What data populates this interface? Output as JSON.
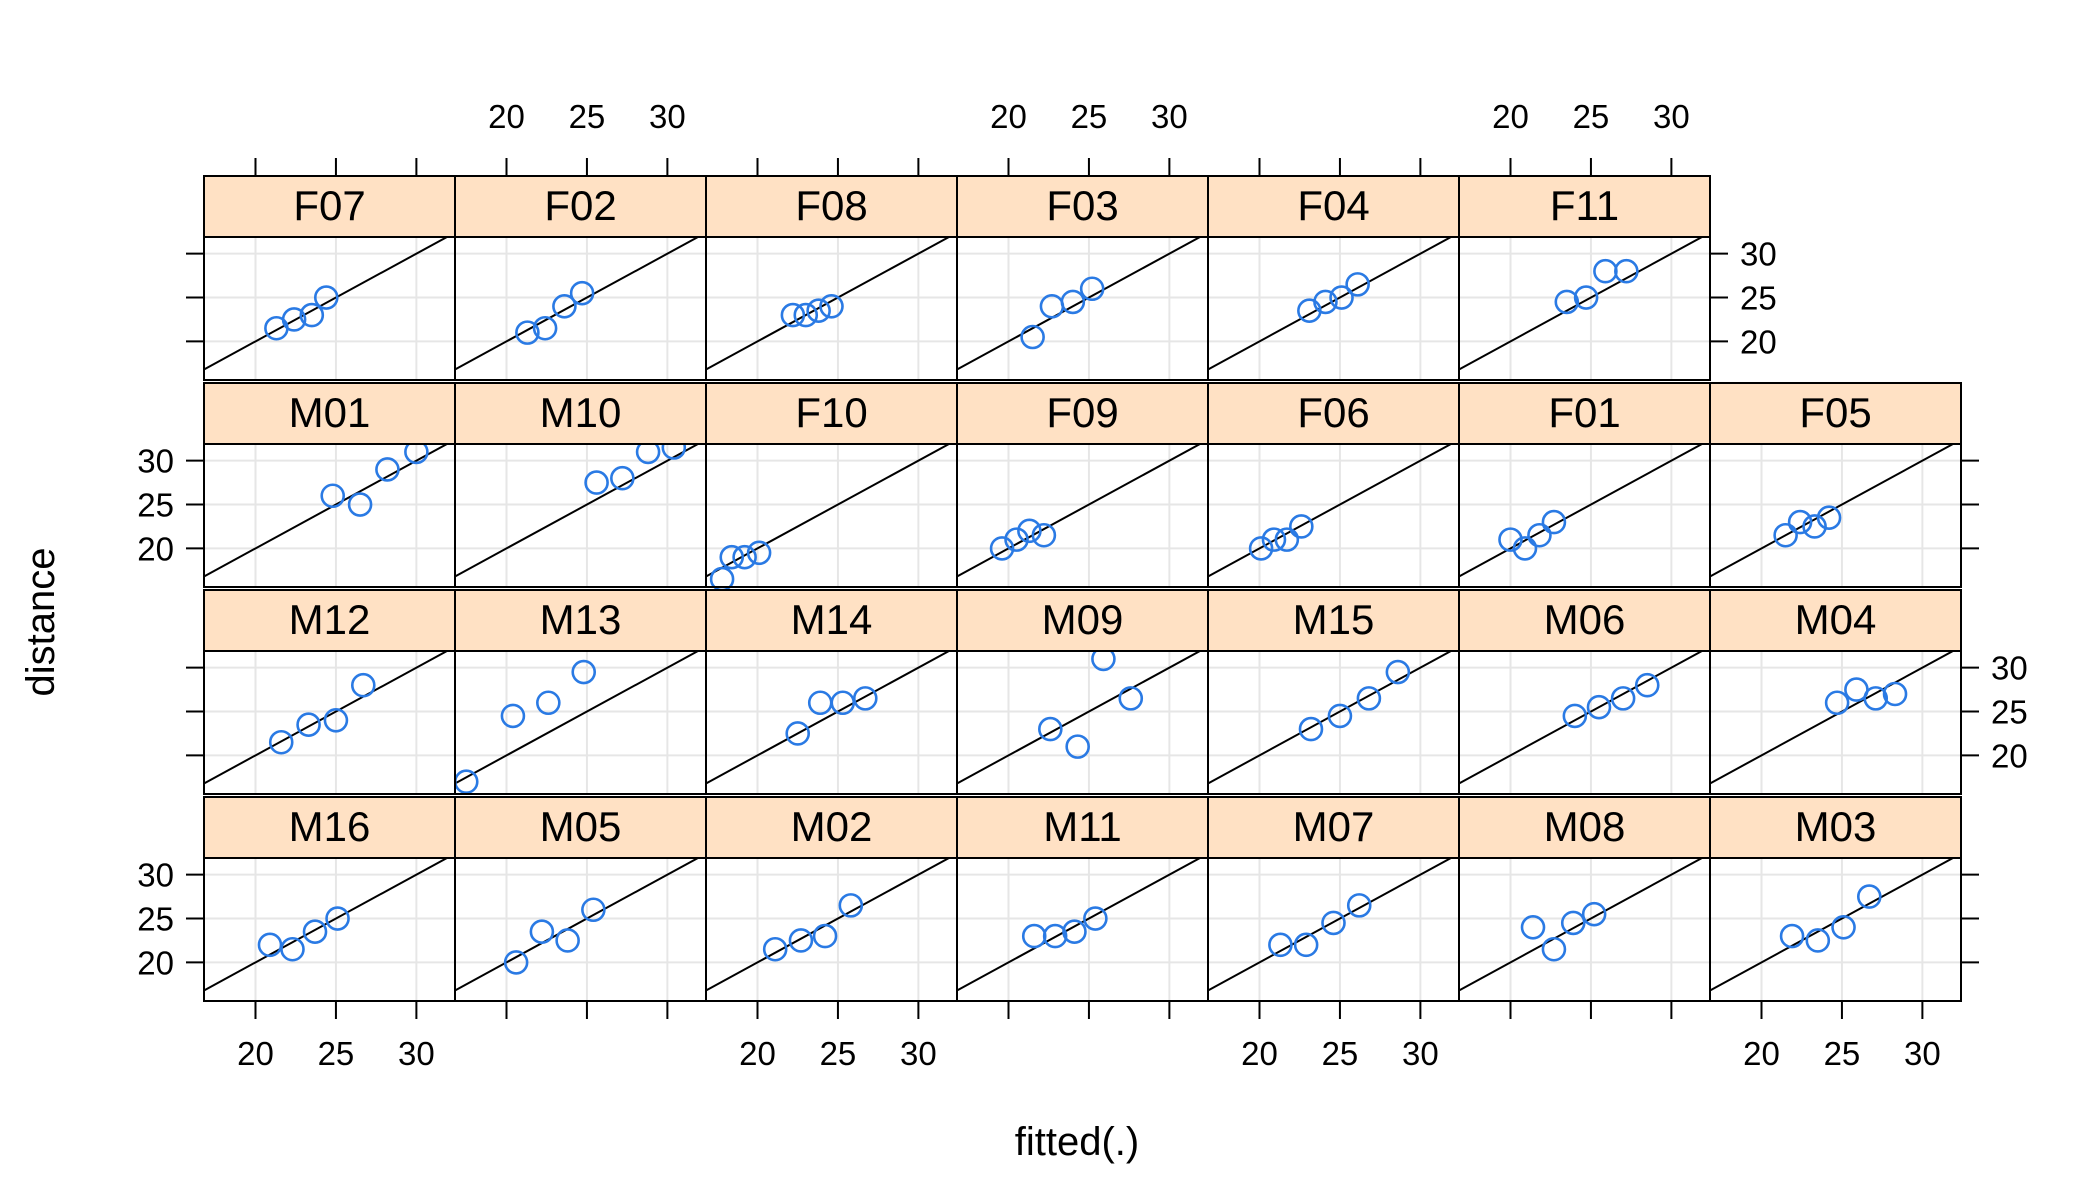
{
  "chart_data": {
    "type": "scatter",
    "xlabel": "fitted(.)",
    "ylabel": "distance",
    "xlim": [
      16.8,
      32.4
    ],
    "ylim": [
      15.6,
      31.9
    ],
    "x_ticks": [
      20,
      25,
      30
    ],
    "y_ticks": [
      20,
      25,
      30
    ],
    "tick_labels": [
      "20",
      "25",
      "30"
    ],
    "grid": true,
    "reference_line": "y = x",
    "colors": {
      "points": "#2a7ae4",
      "strip": "#ffe1c4",
      "grid": "#e6e6e6",
      "frame": "#000000"
    },
    "panels": [
      {
        "label": "F07",
        "points": [
          [
            21.3,
            21.5
          ],
          [
            22.4,
            22.5
          ],
          [
            23.5,
            23.0
          ],
          [
            24.4,
            25.0
          ]
        ]
      },
      {
        "label": "F02",
        "points": [
          [
            21.3,
            21.0
          ],
          [
            22.4,
            21.5
          ],
          [
            23.6,
            24.0
          ],
          [
            24.7,
            25.5
          ]
        ]
      },
      {
        "label": "F08",
        "points": [
          [
            22.2,
            23.0
          ],
          [
            23.0,
            23.0
          ],
          [
            23.8,
            23.5
          ],
          [
            24.6,
            24.0
          ]
        ]
      },
      {
        "label": "F03",
        "points": [
          [
            21.5,
            20.5
          ],
          [
            22.7,
            24.0
          ],
          [
            24.0,
            24.5
          ],
          [
            25.2,
            26.0
          ]
        ]
      },
      {
        "label": "F04",
        "points": [
          [
            23.1,
            23.5
          ],
          [
            24.1,
            24.5
          ],
          [
            25.1,
            25.0
          ],
          [
            26.1,
            26.5
          ]
        ]
      },
      {
        "label": "F11",
        "points": [
          [
            23.5,
            24.5
          ],
          [
            24.7,
            25.0
          ],
          [
            25.9,
            28.0
          ],
          [
            27.2,
            28.0
          ]
        ]
      },
      {
        "label": "M01",
        "points": [
          [
            24.8,
            26.0
          ],
          [
            26.5,
            25.0
          ],
          [
            28.2,
            29.0
          ],
          [
            30.0,
            31.0
          ]
        ]
      },
      {
        "label": "M10",
        "points": [
          [
            25.6,
            27.5
          ],
          [
            27.2,
            28.0
          ],
          [
            28.8,
            31.0
          ],
          [
            30.4,
            31.5
          ]
        ]
      },
      {
        "label": "F10",
        "points": [
          [
            17.8,
            16.5
          ],
          [
            18.4,
            19.0
          ],
          [
            19.2,
            19.0
          ],
          [
            20.1,
            19.5
          ]
        ]
      },
      {
        "label": "F09",
        "points": [
          [
            19.6,
            20.0
          ],
          [
            20.5,
            21.0
          ],
          [
            21.3,
            22.0
          ],
          [
            22.2,
            21.5
          ]
        ]
      },
      {
        "label": "F06",
        "points": [
          [
            20.1,
            20.0
          ],
          [
            20.9,
            21.0
          ],
          [
            21.7,
            21.0
          ],
          [
            22.6,
            22.5
          ]
        ]
      },
      {
        "label": "F01",
        "points": [
          [
            20.0,
            21.0
          ],
          [
            20.9,
            20.0
          ],
          [
            21.8,
            21.5
          ],
          [
            22.7,
            23.0
          ]
        ]
      },
      {
        "label": "F05",
        "points": [
          [
            21.5,
            21.5
          ],
          [
            22.4,
            23.0
          ],
          [
            23.3,
            22.5
          ],
          [
            24.2,
            23.5
          ]
        ]
      },
      {
        "label": "M12",
        "points": [
          [
            21.6,
            21.5
          ],
          [
            23.3,
            23.5
          ],
          [
            25.0,
            24.0
          ],
          [
            26.7,
            28.0
          ]
        ]
      },
      {
        "label": "M13",
        "points": [
          [
            17.5,
            17.0
          ],
          [
            20.4,
            24.5
          ],
          [
            22.6,
            26.0
          ],
          [
            24.8,
            29.5
          ]
        ]
      },
      {
        "label": "M14",
        "points": [
          [
            22.5,
            22.5
          ],
          [
            23.9,
            26.0
          ],
          [
            25.3,
            26.0
          ],
          [
            26.7,
            26.5
          ]
        ]
      },
      {
        "label": "M09",
        "points": [
          [
            22.6,
            23.0
          ],
          [
            24.3,
            21.0
          ],
          [
            25.9,
            31.0
          ],
          [
            27.6,
            26.5
          ]
        ]
      },
      {
        "label": "M15",
        "points": [
          [
            23.2,
            23.0
          ],
          [
            25.0,
            24.5
          ],
          [
            26.8,
            26.5
          ],
          [
            28.6,
            29.5
          ]
        ]
      },
      {
        "label": "M06",
        "points": [
          [
            24.0,
            24.5
          ],
          [
            25.5,
            25.5
          ],
          [
            27.0,
            26.5
          ],
          [
            28.5,
            28.0
          ]
        ]
      },
      {
        "label": "M04",
        "points": [
          [
            24.7,
            26.0
          ],
          [
            25.9,
            27.5
          ],
          [
            27.1,
            26.5
          ],
          [
            28.3,
            27.0
          ]
        ]
      },
      {
        "label": "M16",
        "points": [
          [
            20.9,
            22.0
          ],
          [
            22.3,
            21.5
          ],
          [
            23.7,
            23.5
          ],
          [
            25.1,
            25.0
          ]
        ]
      },
      {
        "label": "M05",
        "points": [
          [
            20.6,
            20.0
          ],
          [
            22.2,
            23.5
          ],
          [
            23.8,
            22.5
          ],
          [
            25.4,
            26.0
          ]
        ]
      },
      {
        "label": "M02",
        "points": [
          [
            21.1,
            21.5
          ],
          [
            22.7,
            22.5
          ],
          [
            24.2,
            23.0
          ],
          [
            25.8,
            26.5
          ]
        ]
      },
      {
        "label": "M11",
        "points": [
          [
            21.6,
            23.0
          ],
          [
            22.9,
            23.0
          ],
          [
            24.1,
            23.5
          ],
          [
            25.4,
            25.0
          ]
        ]
      },
      {
        "label": "M07",
        "points": [
          [
            21.3,
            22.0
          ],
          [
            22.9,
            22.0
          ],
          [
            24.6,
            24.5
          ],
          [
            26.2,
            26.5
          ]
        ]
      },
      {
        "label": "M08",
        "points": [
          [
            21.4,
            24.0
          ],
          [
            22.7,
            21.5
          ],
          [
            23.9,
            24.5
          ],
          [
            25.2,
            25.5
          ]
        ]
      },
      {
        "label": "M03",
        "points": [
          [
            21.9,
            23.0
          ],
          [
            23.5,
            22.5
          ],
          [
            25.1,
            24.0
          ],
          [
            26.7,
            27.5
          ]
        ]
      }
    ]
  }
}
